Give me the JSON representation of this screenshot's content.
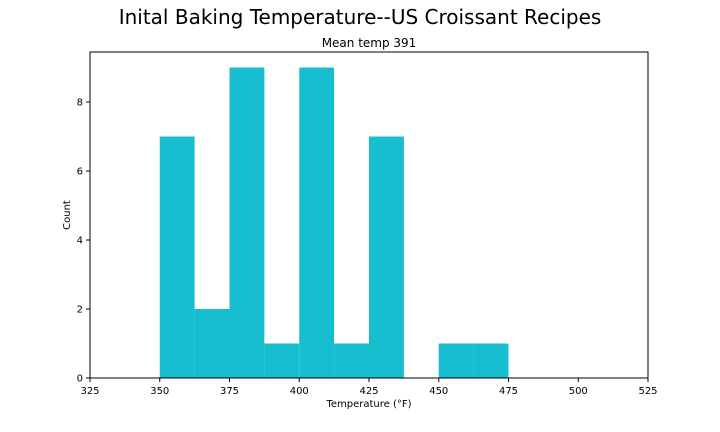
{
  "chart_data": {
    "type": "bar",
    "suptitle": "Inital Baking Temperature--US Croissant Recipes",
    "title": "Mean temp 391",
    "xlabel": "Temperature (°F)",
    "ylabel": "Count",
    "xlim": [
      325,
      525
    ],
    "ylim": [
      0,
      9.45
    ],
    "xticks": [
      325,
      350,
      375,
      400,
      425,
      450,
      475,
      500,
      525
    ],
    "yticks": [
      0,
      2,
      4,
      6,
      8
    ],
    "bin_width": 12.5,
    "bins": [
      {
        "start": 350,
        "count": 7
      },
      {
        "start": 362.5,
        "count": 2
      },
      {
        "start": 375,
        "count": 9
      },
      {
        "start": 387.5,
        "count": 1
      },
      {
        "start": 400,
        "count": 9
      },
      {
        "start": 412.5,
        "count": 1
      },
      {
        "start": 425,
        "count": 7
      },
      {
        "start": 437.5,
        "count": 0
      },
      {
        "start": 450,
        "count": 1
      },
      {
        "start": 462.5,
        "count": 1
      }
    ],
    "bar_color": "#17becf",
    "grid": false,
    "legend": "none"
  }
}
